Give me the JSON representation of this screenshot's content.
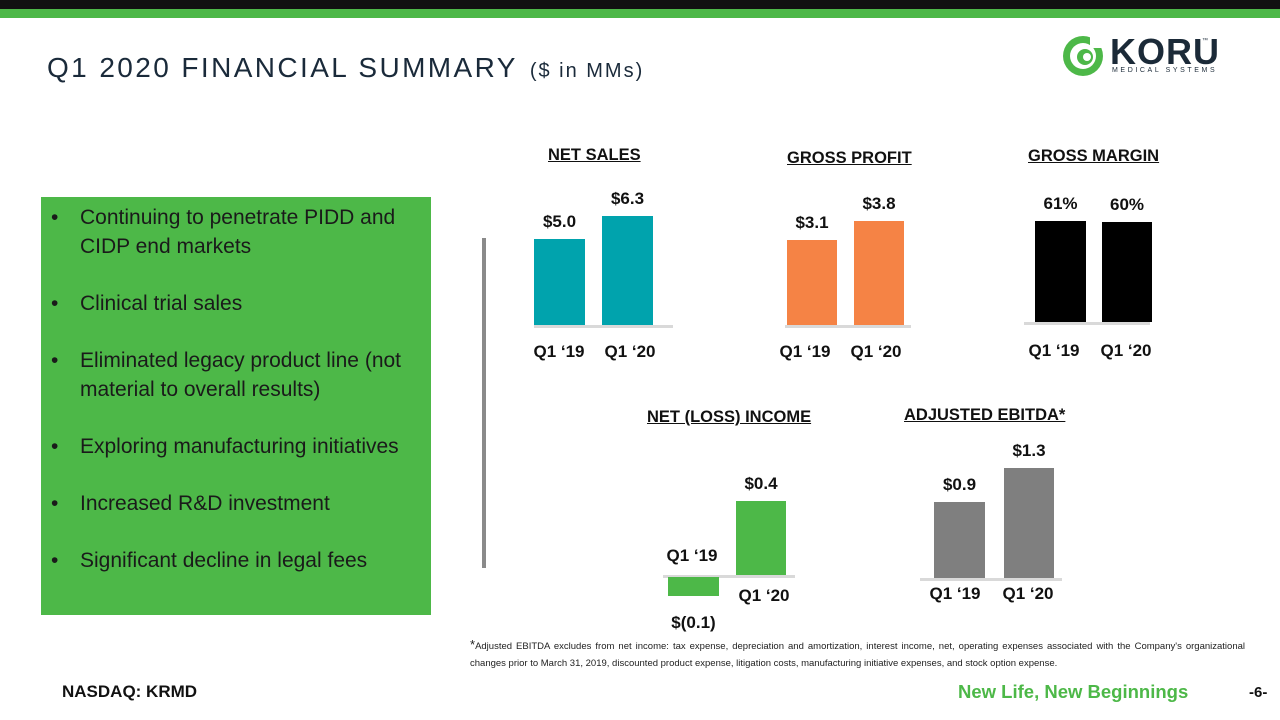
{
  "header": {
    "title": "Q1 2020 FINANCIAL SUMMARY",
    "subtitle": "($ in MMs)"
  },
  "logo": {
    "name": "KORU",
    "tagline": "MEDICAL SYSTEMS",
    "trademark": "™"
  },
  "bullets": [
    "Continuing to penetrate PIDD and CIDP end markets",
    "Clinical trial sales",
    "Eliminated legacy product line (not material to overall results)",
    "Exploring manufacturing initiatives",
    "Increased R&D investment",
    "Significant decline in legal fees"
  ],
  "chart_data": [
    {
      "type": "bar",
      "title": "NET SALES",
      "categories": [
        "Q1 ‘19",
        "Q1 ‘20"
      ],
      "values": [
        5.0,
        6.3
      ],
      "labels": [
        "$5.0",
        "$6.3"
      ],
      "color": "#00a3ad"
    },
    {
      "type": "bar",
      "title": "GROSS PROFIT",
      "categories": [
        "Q1 ‘19",
        "Q1 ‘20"
      ],
      "values": [
        3.1,
        3.8
      ],
      "labels": [
        "$3.1",
        "$3.8"
      ],
      "color": "#f58345"
    },
    {
      "type": "bar",
      "title": "GROSS MARGIN",
      "categories": [
        "Q1 ‘19",
        "Q1 ‘20"
      ],
      "values": [
        61,
        60
      ],
      "labels": [
        "61%",
        "60%"
      ],
      "color": "#000000"
    },
    {
      "type": "bar",
      "title": "NET (LOSS) INCOME",
      "categories": [
        "Q1 ‘19",
        "Q1 ‘20"
      ],
      "values": [
        -0.1,
        0.4
      ],
      "labels": [
        "$(0.1)",
        "$0.4"
      ],
      "color": "#4db848"
    },
    {
      "type": "bar",
      "title": "ADJUSTED EBITDA*",
      "categories": [
        "Q1 ‘19",
        "Q1 ‘20"
      ],
      "values": [
        0.9,
        1.3
      ],
      "labels": [
        "$0.9",
        "$1.3"
      ],
      "color": "#7f7f7f"
    }
  ],
  "footnote": {
    "star": "*",
    "text": "Adjusted EBITDA excludes from net income: tax expense, depreciation and amortization, interest income, net, operating expenses associated with the Company's organizational changes prior to March 31, 2019, discounted product expense, litigation costs, manufacturing initiative expenses, and stock option expense."
  },
  "footer": {
    "ticker": "NASDAQ: KRMD",
    "tagline": "New Life, New Beginnings",
    "page": "-6-"
  }
}
